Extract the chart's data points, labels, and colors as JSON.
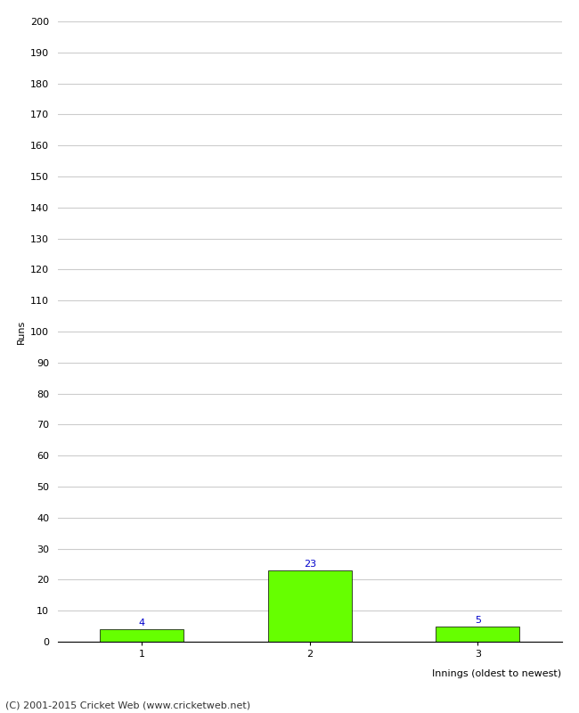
{
  "categories": [
    "1",
    "2",
    "3"
  ],
  "values": [
    4,
    23,
    5
  ],
  "bar_color": "#66ff00",
  "bar_edgecolor": "#000000",
  "ylabel": "Runs",
  "xlabel": "Innings (oldest to newest)",
  "ylim": [
    0,
    200
  ],
  "ytick_step": 10,
  "annotation_color": "#0000cc",
  "annotation_fontsize": 8,
  "footer_text": "(C) 2001-2015 Cricket Web (www.cricketweb.net)",
  "footer_fontsize": 8,
  "footer_color": "#333333",
  "xlabel_fontsize": 8,
  "ylabel_fontsize": 8,
  "tick_fontsize": 8,
  "bar_width": 0.5,
  "background_color": "#ffffff",
  "grid_color": "#cccccc"
}
